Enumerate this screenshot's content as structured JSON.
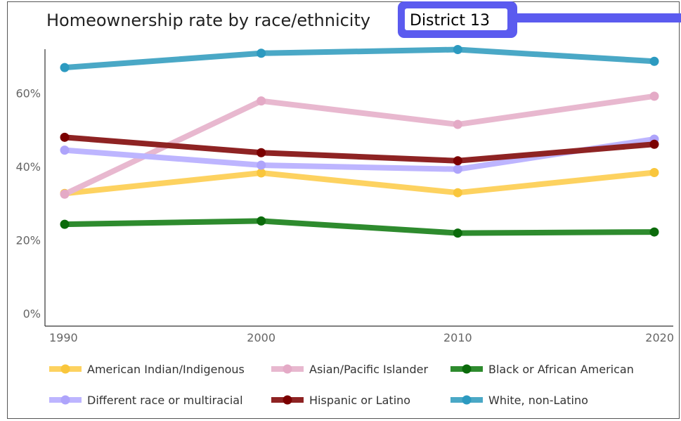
{
  "chart_data": {
    "type": "line",
    "title": "Homeownership rate by race/ethnicity",
    "selector": {
      "label": "District 13",
      "accent": "#5b5bef"
    },
    "x": [
      1990,
      2000,
      2010,
      2020
    ],
    "x_tick_labels": [
      "1990",
      "2000",
      "2010",
      "2020"
    ],
    "y_ticks": [
      0,
      20,
      40,
      60
    ],
    "y_tick_labels": [
      "0%",
      "20%",
      "40%",
      "60%"
    ],
    "ylim": [
      0,
      72
    ],
    "grid": false,
    "legend_position": "bottom",
    "series": [
      {
        "name": "American Indian/Indigenous",
        "color": "#fdd260",
        "dot": "#f9c63c",
        "values": [
          32.7,
          38.3,
          32.9,
          38.4
        ]
      },
      {
        "name": "Asian/Pacific Islander",
        "color": "#e8b8cf",
        "dot": "#e4aac6",
        "values": [
          32.5,
          57.9,
          51.5,
          59.2
        ]
      },
      {
        "name": "Black or African American",
        "color": "#2e8b2e",
        "dot": "#0b6b0b",
        "values": [
          24.3,
          25.2,
          21.9,
          22.2
        ]
      },
      {
        "name": "Different race or multiracial",
        "color": "#bdb5ff",
        "dot": "#aea4fb",
        "values": [
          44.5,
          40.4,
          39.3,
          47.5
        ]
      },
      {
        "name": "Hispanic or Latino",
        "color": "#8e2323",
        "dot": "#7b0000",
        "values": [
          48.0,
          43.8,
          41.6,
          46.1
        ]
      },
      {
        "name": "White, non-Latino",
        "color": "#4aa8c6",
        "dot": "#2c9ac0",
        "values": [
          67.0,
          70.9,
          71.9,
          68.7
        ]
      }
    ]
  }
}
